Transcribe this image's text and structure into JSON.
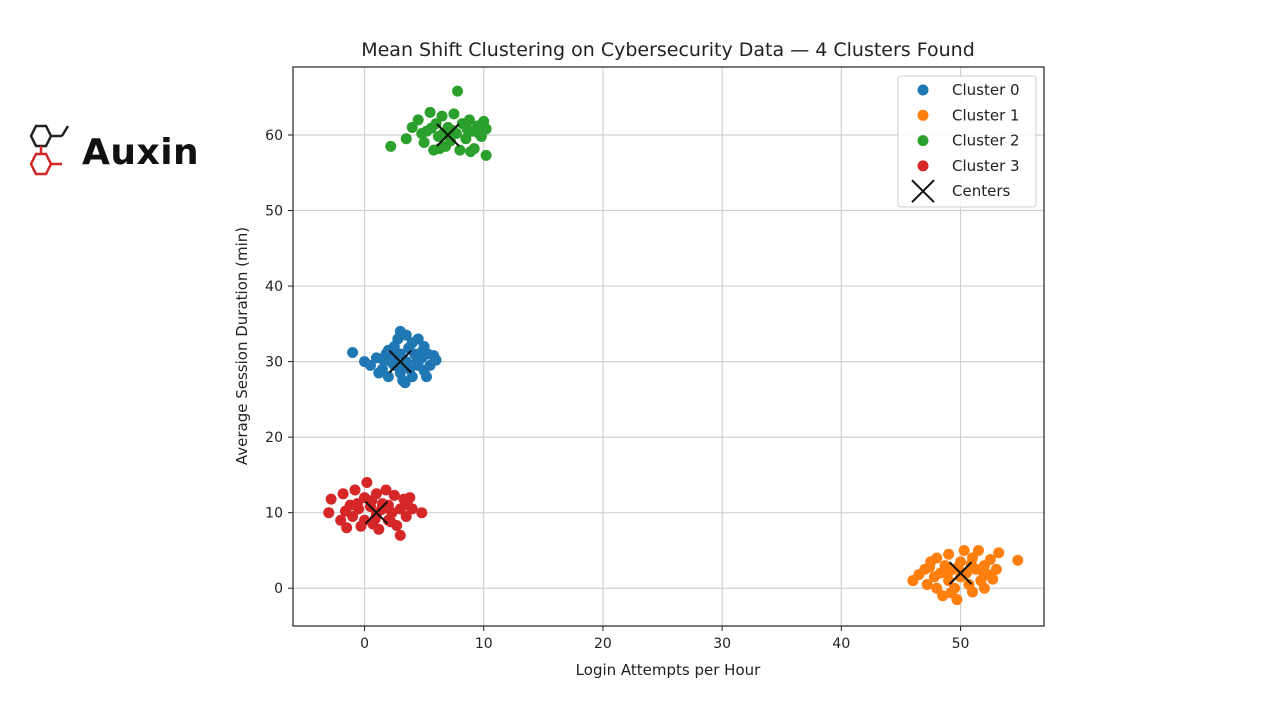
{
  "brand": {
    "name": "Auxin",
    "logo_icon": "molecule-hexagon-icon",
    "colors": {
      "dark": "#222222",
      "accent": "#d62728"
    }
  },
  "chart_data": {
    "type": "scatter",
    "title": "Mean Shift Clustering on Cybersecurity Data — 4 Clusters Found",
    "xlabel": "Login Attempts per Hour",
    "ylabel": "Average Session Duration (min)",
    "xlim": [
      -6,
      57
    ],
    "ylim": [
      -5,
      69
    ],
    "xticks": [
      0,
      10,
      20,
      30,
      40,
      50
    ],
    "yticks": [
      0,
      10,
      20,
      30,
      40,
      50,
      60
    ],
    "grid": true,
    "legend_position": "top-right",
    "series": [
      {
        "name": "Cluster 0",
        "color": "#1f77b4",
        "points": [
          [
            -1,
            31.2
          ],
          [
            0,
            30
          ],
          [
            0.5,
            29.5
          ],
          [
            1,
            30.5
          ],
          [
            1.5,
            29
          ],
          [
            1.8,
            31
          ],
          [
            2,
            28
          ],
          [
            2.2,
            30
          ],
          [
            2.5,
            32
          ],
          [
            2.5,
            29.5
          ],
          [
            2.8,
            33
          ],
          [
            3,
            34
          ],
          [
            3,
            31
          ],
          [
            3,
            28.5
          ],
          [
            3.2,
            27.5
          ],
          [
            3.5,
            33.5
          ],
          [
            3.5,
            30
          ],
          [
            3.8,
            29
          ],
          [
            4,
            32.5
          ],
          [
            4,
            28
          ],
          [
            4.2,
            31
          ],
          [
            4.5,
            33
          ],
          [
            4.5,
            29.5
          ],
          [
            4.8,
            30.5
          ],
          [
            5,
            32
          ],
          [
            5,
            28.8
          ],
          [
            5.3,
            31
          ],
          [
            5.5,
            29.5
          ],
          [
            5.8,
            30.8
          ],
          [
            6,
            30.2
          ],
          [
            5.2,
            28
          ],
          [
            3.4,
            27.2
          ],
          [
            1.2,
            28.5
          ],
          [
            2,
            31.5
          ],
          [
            3.7,
            31.8
          ],
          [
            4.4,
            30
          ],
          [
            2.6,
            30.8
          ],
          [
            3.1,
            29.2
          ],
          [
            1.6,
            30.2
          ],
          [
            4.9,
            31.5
          ]
        ]
      },
      {
        "name": "Cluster 1",
        "color": "#ff7f0e",
        "points": [
          [
            46,
            1
          ],
          [
            46.5,
            1.8
          ],
          [
            47,
            2.5
          ],
          [
            47.2,
            0.5
          ],
          [
            47.5,
            3.5
          ],
          [
            47.8,
            1.5
          ],
          [
            48,
            4
          ],
          [
            48,
            0
          ],
          [
            48.3,
            2
          ],
          [
            48.5,
            -1
          ],
          [
            48.7,
            3
          ],
          [
            49,
            1
          ],
          [
            49,
            4.5
          ],
          [
            49.3,
            2.5
          ],
          [
            49.5,
            0
          ],
          [
            49.7,
            -1.5
          ],
          [
            50,
            3.5
          ],
          [
            50,
            1.5
          ],
          [
            50.3,
            5
          ],
          [
            50.5,
            2
          ],
          [
            50.7,
            0.5
          ],
          [
            51,
            4
          ],
          [
            51,
            -0.5
          ],
          [
            51.3,
            2.5
          ],
          [
            51.5,
            5
          ],
          [
            51.7,
            1
          ],
          [
            52,
            3
          ],
          [
            52,
            0
          ],
          [
            52.3,
            1.8
          ],
          [
            52.5,
            3.8
          ],
          [
            53,
            2.5
          ],
          [
            53.2,
            4.7
          ],
          [
            54.8,
            3.7
          ],
          [
            49.8,
            2.8
          ],
          [
            50.9,
            3.2
          ],
          [
            48.9,
            1.9
          ],
          [
            51.9,
            2.2
          ],
          [
            47.4,
            2.8
          ],
          [
            52.7,
            1.2
          ],
          [
            49.2,
            -0.6
          ]
        ]
      },
      {
        "name": "Cluster 2",
        "color": "#2ca02c",
        "points": [
          [
            2.2,
            58.5
          ],
          [
            3.5,
            59.5
          ],
          [
            4,
            61
          ],
          [
            4.5,
            62
          ],
          [
            5,
            59
          ],
          [
            5.2,
            60.5
          ],
          [
            5.5,
            63
          ],
          [
            5.8,
            58
          ],
          [
            6,
            61.5
          ],
          [
            6.2,
            59.8
          ],
          [
            6.5,
            62.5
          ],
          [
            6.8,
            58.5
          ],
          [
            7,
            61
          ],
          [
            7.2,
            59.2
          ],
          [
            7.5,
            62.8
          ],
          [
            7.7,
            60.2
          ],
          [
            7.8,
            65.8
          ],
          [
            8,
            58
          ],
          [
            8.2,
            61.5
          ],
          [
            8.5,
            59.5
          ],
          [
            8.8,
            62
          ],
          [
            9,
            60.5
          ],
          [
            9.2,
            58.2
          ],
          [
            9.5,
            61.2
          ],
          [
            9.8,
            59.8
          ],
          [
            10,
            61.8
          ],
          [
            10.2,
            57.3
          ],
          [
            10.2,
            60.8
          ],
          [
            9.6,
            60.2
          ],
          [
            8.6,
            60.8
          ],
          [
            7.4,
            60.6
          ],
          [
            6.6,
            60.2
          ],
          [
            5.6,
            60.9
          ],
          [
            4.8,
            60.2
          ],
          [
            8.9,
            57.8
          ],
          [
            6.3,
            58.2
          ]
        ]
      },
      {
        "name": "Cluster 3",
        "color": "#d62728",
        "points": [
          [
            -3,
            10
          ],
          [
            -2.8,
            11.8
          ],
          [
            -2,
            9
          ],
          [
            -1.8,
            12.5
          ],
          [
            -1.5,
            8
          ],
          [
            -1.2,
            11
          ],
          [
            -1,
            9.5
          ],
          [
            -0.8,
            13
          ],
          [
            -0.5,
            10.5
          ],
          [
            -0.3,
            8.2
          ],
          [
            0,
            12
          ],
          [
            0,
            9
          ],
          [
            0.2,
            14
          ],
          [
            0.5,
            10.8
          ],
          [
            0.7,
            8.5
          ],
          [
            1,
            12.5
          ],
          [
            1,
            9.8
          ],
          [
            1.2,
            7.8
          ],
          [
            1.5,
            11.2
          ],
          [
            1.8,
            13
          ],
          [
            2,
            9
          ],
          [
            2,
            11
          ],
          [
            2.3,
            10
          ],
          [
            2.5,
            12.3
          ],
          [
            2.7,
            8.3
          ],
          [
            3,
            10.5
          ],
          [
            3,
            7
          ],
          [
            3.3,
            11.8
          ],
          [
            3.5,
            9.5
          ],
          [
            3.8,
            12
          ],
          [
            4,
            10.5
          ],
          [
            4.8,
            10
          ],
          [
            0.6,
            11.6
          ],
          [
            1.4,
            10.4
          ],
          [
            -0.6,
            11.2
          ],
          [
            2.2,
            8.8
          ],
          [
            0.9,
            9.2
          ],
          [
            1.7,
            10.6
          ],
          [
            -1.6,
            10.2
          ],
          [
            3.6,
            11
          ]
        ]
      }
    ],
    "centers": {
      "name": "Centers",
      "color": "#111111",
      "marker": "x",
      "points": [
        [
          3,
          30
        ],
        [
          50,
          2
        ],
        [
          7,
          60
        ],
        [
          1,
          10
        ]
      ]
    }
  }
}
